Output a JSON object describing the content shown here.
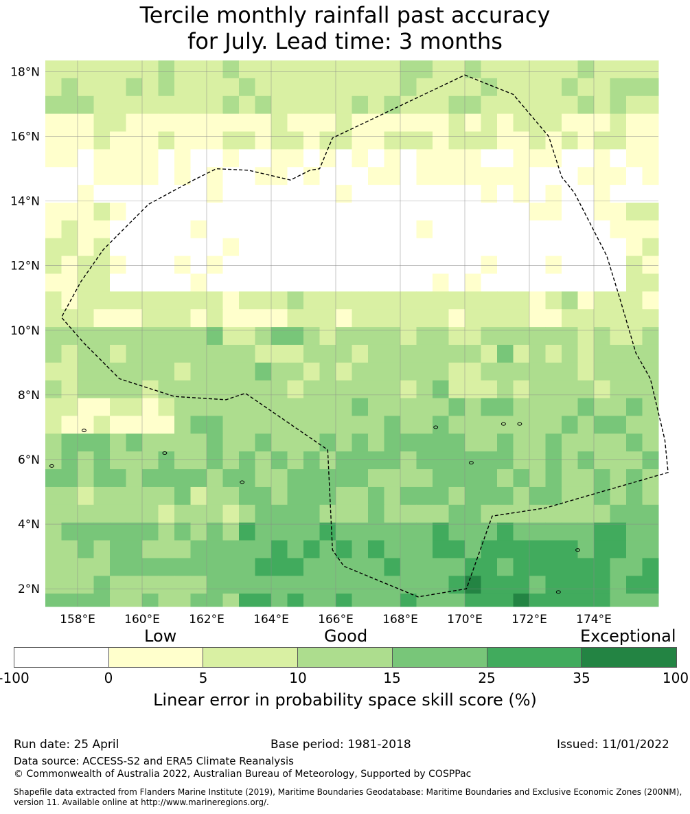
{
  "title_line1": "Tercile monthly rainfall past accuracy",
  "title_line2": "for July. Lead time: 3 months",
  "map": {
    "lon_min": 157,
    "lon_max": 176,
    "lat_min": 1.45,
    "lat_max": 18.35,
    "lon_ticks": [
      "158°E",
      "160°E",
      "162°E",
      "164°E",
      "166°E",
      "168°E",
      "170°E",
      "172°E",
      "174°E"
    ],
    "lat_ticks": [
      "18°N",
      "16°N",
      "14°N",
      "12°N",
      "10°N",
      "8°N",
      "6°N",
      "4°N",
      "2°N"
    ],
    "boundary": [
      [
        170,
        17.9
      ],
      [
        171.5,
        17.3
      ],
      [
        172.6,
        16.0
      ],
      [
        173.0,
        14.75
      ],
      [
        173.4,
        14.25
      ],
      [
        174.4,
        12.3
      ],
      [
        174.8,
        11.0
      ],
      [
        175.3,
        9.3
      ],
      [
        175.75,
        8.5
      ],
      [
        176.2,
        6.6
      ],
      [
        176.3,
        5.6
      ],
      [
        172.5,
        4.5
      ],
      [
        170.85,
        4.25
      ],
      [
        170.05,
        2.0
      ],
      [
        168.55,
        1.75
      ],
      [
        166.25,
        2.7
      ],
      [
        165.9,
        3.2
      ],
      [
        165.75,
        6.3
      ],
      [
        163.2,
        8.05
      ],
      [
        162.6,
        7.85
      ],
      [
        161.0,
        7.95
      ],
      [
        159.3,
        8.5
      ],
      [
        158.2,
        9.6
      ],
      [
        157.5,
        10.4
      ],
      [
        158.1,
        11.5
      ],
      [
        158.8,
        12.5
      ],
      [
        160.2,
        13.9
      ],
      [
        161.5,
        14.6
      ],
      [
        162.3,
        15.0
      ],
      [
        163.3,
        14.95
      ],
      [
        164.6,
        14.65
      ],
      [
        165.2,
        14.95
      ],
      [
        165.5,
        15.0
      ],
      [
        165.9,
        15.95
      ],
      [
        170.0,
        17.9
      ]
    ]
  },
  "colorbar": {
    "categories": [
      "Low",
      "Good",
      "Exceptional"
    ],
    "ticks": [
      "-100",
      "0",
      "5",
      "10",
      "15",
      "25",
      "35",
      "100"
    ],
    "colors": [
      "#ffffff",
      "#ffffcc",
      "#d9f0a3",
      "#addd8e",
      "#78c679",
      "#41ab5d",
      "#238443"
    ],
    "label": "Linear error in probability space skill score (%)"
  },
  "footer": {
    "run_date": "Run date: 25 April",
    "base_period": "Base period: 1981-2018",
    "issued": "Issued: 11/01/2022",
    "data_source": "Data source: ACCESS-S2 and ERA5 Climate Reanalysis",
    "copyright": "© Commonwealth of Australia 2022, Australian Bureau of Meteorology, Supported by COSPPac",
    "shapefile_line1": "Shapefile data extracted from Flanders Marine Institute (2019), Maritime Boundaries Geodatabase: Maritime Boundaries and Exclusive Economic Zones (200NM),",
    "shapefile_line2": "version 11. Available online at http://www.marineregions.org/."
  }
}
